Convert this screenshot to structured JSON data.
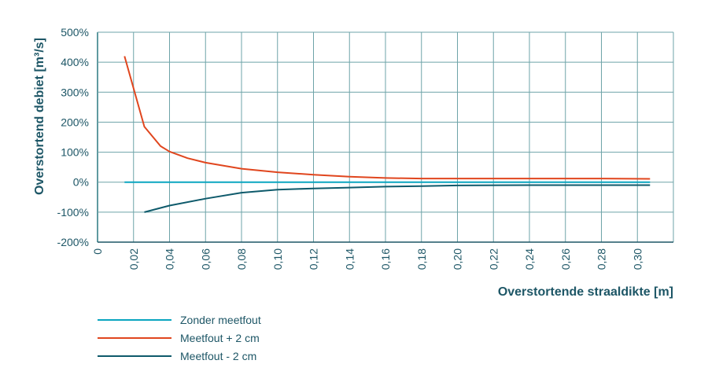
{
  "chart_data": {
    "type": "line",
    "title": "",
    "xlabel": "Overstortende straaldikte [m]",
    "ylabel": "Overstortend debiet [m³/s]",
    "xlim": [
      0,
      0.32
    ],
    "ylim": [
      -200,
      500
    ],
    "grid": true,
    "legend_placement": "bottom-left",
    "x_ticks": [
      "0",
      "0,02",
      "0,04",
      "0,06",
      "0,08",
      "0,10",
      "0,12",
      "0,14",
      "0,16",
      "0,18",
      "0,20",
      "0,22",
      "0,24",
      "0,26",
      "0,28",
      "0,30"
    ],
    "y_ticks": [
      "500%",
      "400%",
      "300%",
      "200%",
      "100%",
      "0%",
      "-100%",
      "-200%"
    ],
    "series": [
      {
        "name": "Zonder meetfout",
        "color": "#0aa5c0",
        "x": [
          0.015,
          0.307
        ],
        "y": [
          0,
          0
        ]
      },
      {
        "name": "Meetfout + 2 cm",
        "color": "#e0461e",
        "x": [
          0.015,
          0.026,
          0.035,
          0.04,
          0.05,
          0.06,
          0.08,
          0.1,
          0.12,
          0.14,
          0.16,
          0.18,
          0.2,
          0.24,
          0.28,
          0.307
        ],
        "y": [
          420,
          185,
          120,
          102,
          80,
          65,
          45,
          33,
          25,
          18,
          14,
          12,
          12,
          12,
          12,
          11
        ]
      },
      {
        "name": "Meetfout - 2 cm",
        "color": "#0e5a6b",
        "x": [
          0.026,
          0.04,
          0.06,
          0.08,
          0.1,
          0.12,
          0.14,
          0.16,
          0.18,
          0.2,
          0.24,
          0.28,
          0.307
        ],
        "y": [
          -100,
          -78,
          -55,
          -35,
          -25,
          -21,
          -18,
          -15,
          -13,
          -11,
          -10,
          -10,
          -10
        ]
      }
    ]
  }
}
